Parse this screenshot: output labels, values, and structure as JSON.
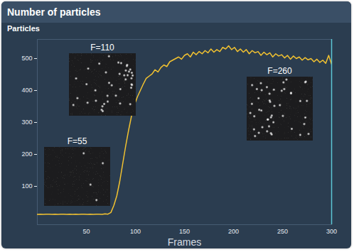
{
  "chart_data": {
    "type": "line",
    "title": "Number of particles",
    "subtitle": "Particles",
    "x_label": "Frames",
    "x": [
      0,
      3,
      6,
      9,
      12,
      15,
      18,
      21,
      24,
      27,
      30,
      33,
      36,
      39,
      42,
      45,
      48,
      51,
      54,
      57,
      60,
      63,
      66,
      69,
      72,
      75,
      78,
      81,
      84,
      87,
      90,
      93,
      96,
      99,
      102,
      105,
      108,
      111,
      114,
      117,
      120,
      123,
      126,
      129,
      132,
      135,
      138,
      141,
      144,
      147,
      150,
      153,
      156,
      159,
      162,
      165,
      168,
      171,
      174,
      177,
      180,
      183,
      186,
      189,
      192,
      195,
      198,
      201,
      204,
      207,
      210,
      213,
      216,
      219,
      222,
      225,
      228,
      231,
      234,
      237,
      240,
      243,
      246,
      249,
      252,
      255,
      258,
      261,
      264,
      267,
      270,
      273,
      276,
      279,
      282,
      285,
      288,
      291,
      294,
      297,
      300
    ],
    "values": [
      12,
      13,
      12,
      13,
      13,
      12,
      13,
      12,
      13,
      13,
      12,
      13,
      12,
      13,
      12,
      13,
      13,
      12,
      13,
      12,
      13,
      13,
      12,
      14,
      13,
      18,
      40,
      70,
      115,
      170,
      225,
      275,
      320,
      355,
      380,
      400,
      420,
      438,
      445,
      452,
      465,
      458,
      472,
      480,
      475,
      490,
      495,
      500,
      505,
      498,
      510,
      515,
      505,
      520,
      512,
      522,
      515,
      525,
      518,
      530,
      520,
      528,
      522,
      535,
      530,
      540,
      528,
      535,
      522,
      530,
      520,
      528,
      515,
      525,
      518,
      522,
      510,
      520,
      512,
      518,
      505,
      515,
      508,
      512,
      502,
      510,
      498,
      508,
      500,
      505,
      495,
      503,
      496,
      500,
      490,
      498,
      488,
      495,
      485,
      510,
      482
    ],
    "color": "#f2c230",
    "cursor": 300,
    "annotations": [
      "F=55",
      "F=110",
      "F=260"
    ],
    "xlim": [
      0,
      300
    ],
    "xticks": [
      50,
      100,
      150,
      200,
      250,
      300
    ],
    "ylim": [
      -20,
      560
    ],
    "yticks": [
      100,
      200,
      300,
      400,
      500
    ],
    "grid": false
  }
}
